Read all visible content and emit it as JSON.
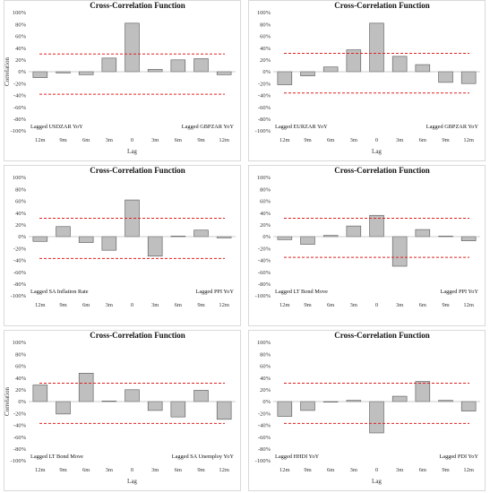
{
  "colors": {
    "bar_fill": "#bfbfbf",
    "bar_stroke": "#555555",
    "bound": "#e02020",
    "frame": "#d9d9d9"
  },
  "chart_data": [
    {
      "type": "bar",
      "title": "Cross-Correlation Function",
      "xlabel": "Lag",
      "ylabel": "Correlation",
      "categories": [
        "12m",
        "9m",
        "6m",
        "3m",
        "0",
        "3m",
        "6m",
        "9m",
        "12m"
      ],
      "values": [
        -10,
        -2,
        -5,
        23,
        82,
        4,
        20,
        22,
        -5
      ],
      "upper_bound": 30,
      "lower_bound": -38,
      "ylim": [
        -100,
        100
      ],
      "yticks": [
        "100%",
        "80%",
        "60%",
        "40%",
        "20%",
        "0%",
        "-20%",
        "-40%",
        "-60%",
        "-80%",
        "-100%"
      ],
      "left_label": "Lagged USDZAR YoY",
      "right_label": "Lagged GBPZAR YoY"
    },
    {
      "type": "bar",
      "title": "Cross-Correlation Function",
      "xlabel": "Lag",
      "ylabel": "",
      "categories": [
        "12m",
        "9m",
        "6m",
        "3m",
        "0",
        "3m",
        "6m",
        "9m",
        "12m"
      ],
      "values": [
        -22,
        -7,
        8,
        37,
        82,
        26,
        12,
        -18,
        -20
      ],
      "upper_bound": 31,
      "lower_bound": -36,
      "ylim": [
        -100,
        100
      ],
      "yticks": [
        "100%",
        "80%",
        "60%",
        "40%",
        "20%",
        "0%",
        "-20%",
        "-40%",
        "-60%",
        "-80%",
        "-100%"
      ],
      "left_label": "Lagged EURZAR YoY",
      "right_label": "Lagged GBPZAR YoY"
    },
    {
      "type": "bar",
      "title": "Cross-Correlation Function",
      "xlabel": "",
      "ylabel": "",
      "categories": [
        "12m",
        "9m",
        "6m",
        "3m",
        "0",
        "3m",
        "6m",
        "9m",
        "12m"
      ],
      "values": [
        -8,
        17,
        -10,
        -23,
        62,
        -33,
        1,
        11,
        -2
      ],
      "upper_bound": 31,
      "lower_bound": -37,
      "ylim": [
        -100,
        100
      ],
      "yticks": [
        "100%",
        "80%",
        "60%",
        "40%",
        "20%",
        "0%",
        "-20%",
        "-40%",
        "-60%",
        "-80%",
        "-100%"
      ],
      "left_label": "Lagged SA Inflation Rate",
      "right_label": "Lagged PPI YoY"
    },
    {
      "type": "bar",
      "title": "Cross-Correlation Function",
      "xlabel": "",
      "ylabel": "",
      "categories": [
        "12m",
        "9m",
        "6m",
        "3m",
        "0",
        "3m",
        "6m",
        "9m",
        "12m"
      ],
      "values": [
        -5,
        -13,
        2,
        18,
        36,
        -50,
        12,
        1,
        -7
      ],
      "upper_bound": 31,
      "lower_bound": -35,
      "ylim": [
        -100,
        100
      ],
      "yticks": [
        "100%",
        "80%",
        "60%",
        "40%",
        "20%",
        "0%",
        "-20%",
        "-40%",
        "-60%",
        "-80%",
        "-100%"
      ],
      "left_label": "Lagged LT Bond Move",
      "right_label": "Lagged PPI YoY"
    },
    {
      "type": "bar",
      "title": "Cross-Correlation Function",
      "xlabel": "Lag",
      "ylabel": "Correlation",
      "categories": [
        "12m",
        "9m",
        "6m",
        "3m",
        "0",
        "3m",
        "6m",
        "9m",
        "12m"
      ],
      "values": [
        28,
        -21,
        48,
        1,
        20,
        -15,
        -26,
        19,
        -30
      ],
      "upper_bound": 31,
      "lower_bound": -37,
      "ylim": [
        -100,
        100
      ],
      "yticks": [
        "100%",
        "80%",
        "60%",
        "40%",
        "20%",
        "0%",
        "-20%",
        "-40%",
        "-60%",
        "-80%",
        "-100%"
      ],
      "left_label": "Lagged LT Bond Move",
      "right_label": "Lagged SA Unemploy YoY"
    },
    {
      "type": "bar",
      "title": "Cross-Correlation Function",
      "xlabel": "Lag",
      "ylabel": "",
      "categories": [
        "12m",
        "9m",
        "6m",
        "3m",
        "0",
        "3m",
        "6m",
        "9m",
        "12m"
      ],
      "values": [
        -25,
        -15,
        -1,
        2,
        -53,
        9,
        34,
        2,
        -16
      ],
      "upper_bound": 31,
      "lower_bound": -37,
      "ylim": [
        -100,
        100
      ],
      "yticks": [
        "100%",
        "80%",
        "60%",
        "40%",
        "20%",
        "0%",
        "-20%",
        "-40%",
        "-60%",
        "-80%",
        "-100%"
      ],
      "left_label": "Lagged HHDI YoY",
      "right_label": "Lagged PDI YoY"
    }
  ]
}
